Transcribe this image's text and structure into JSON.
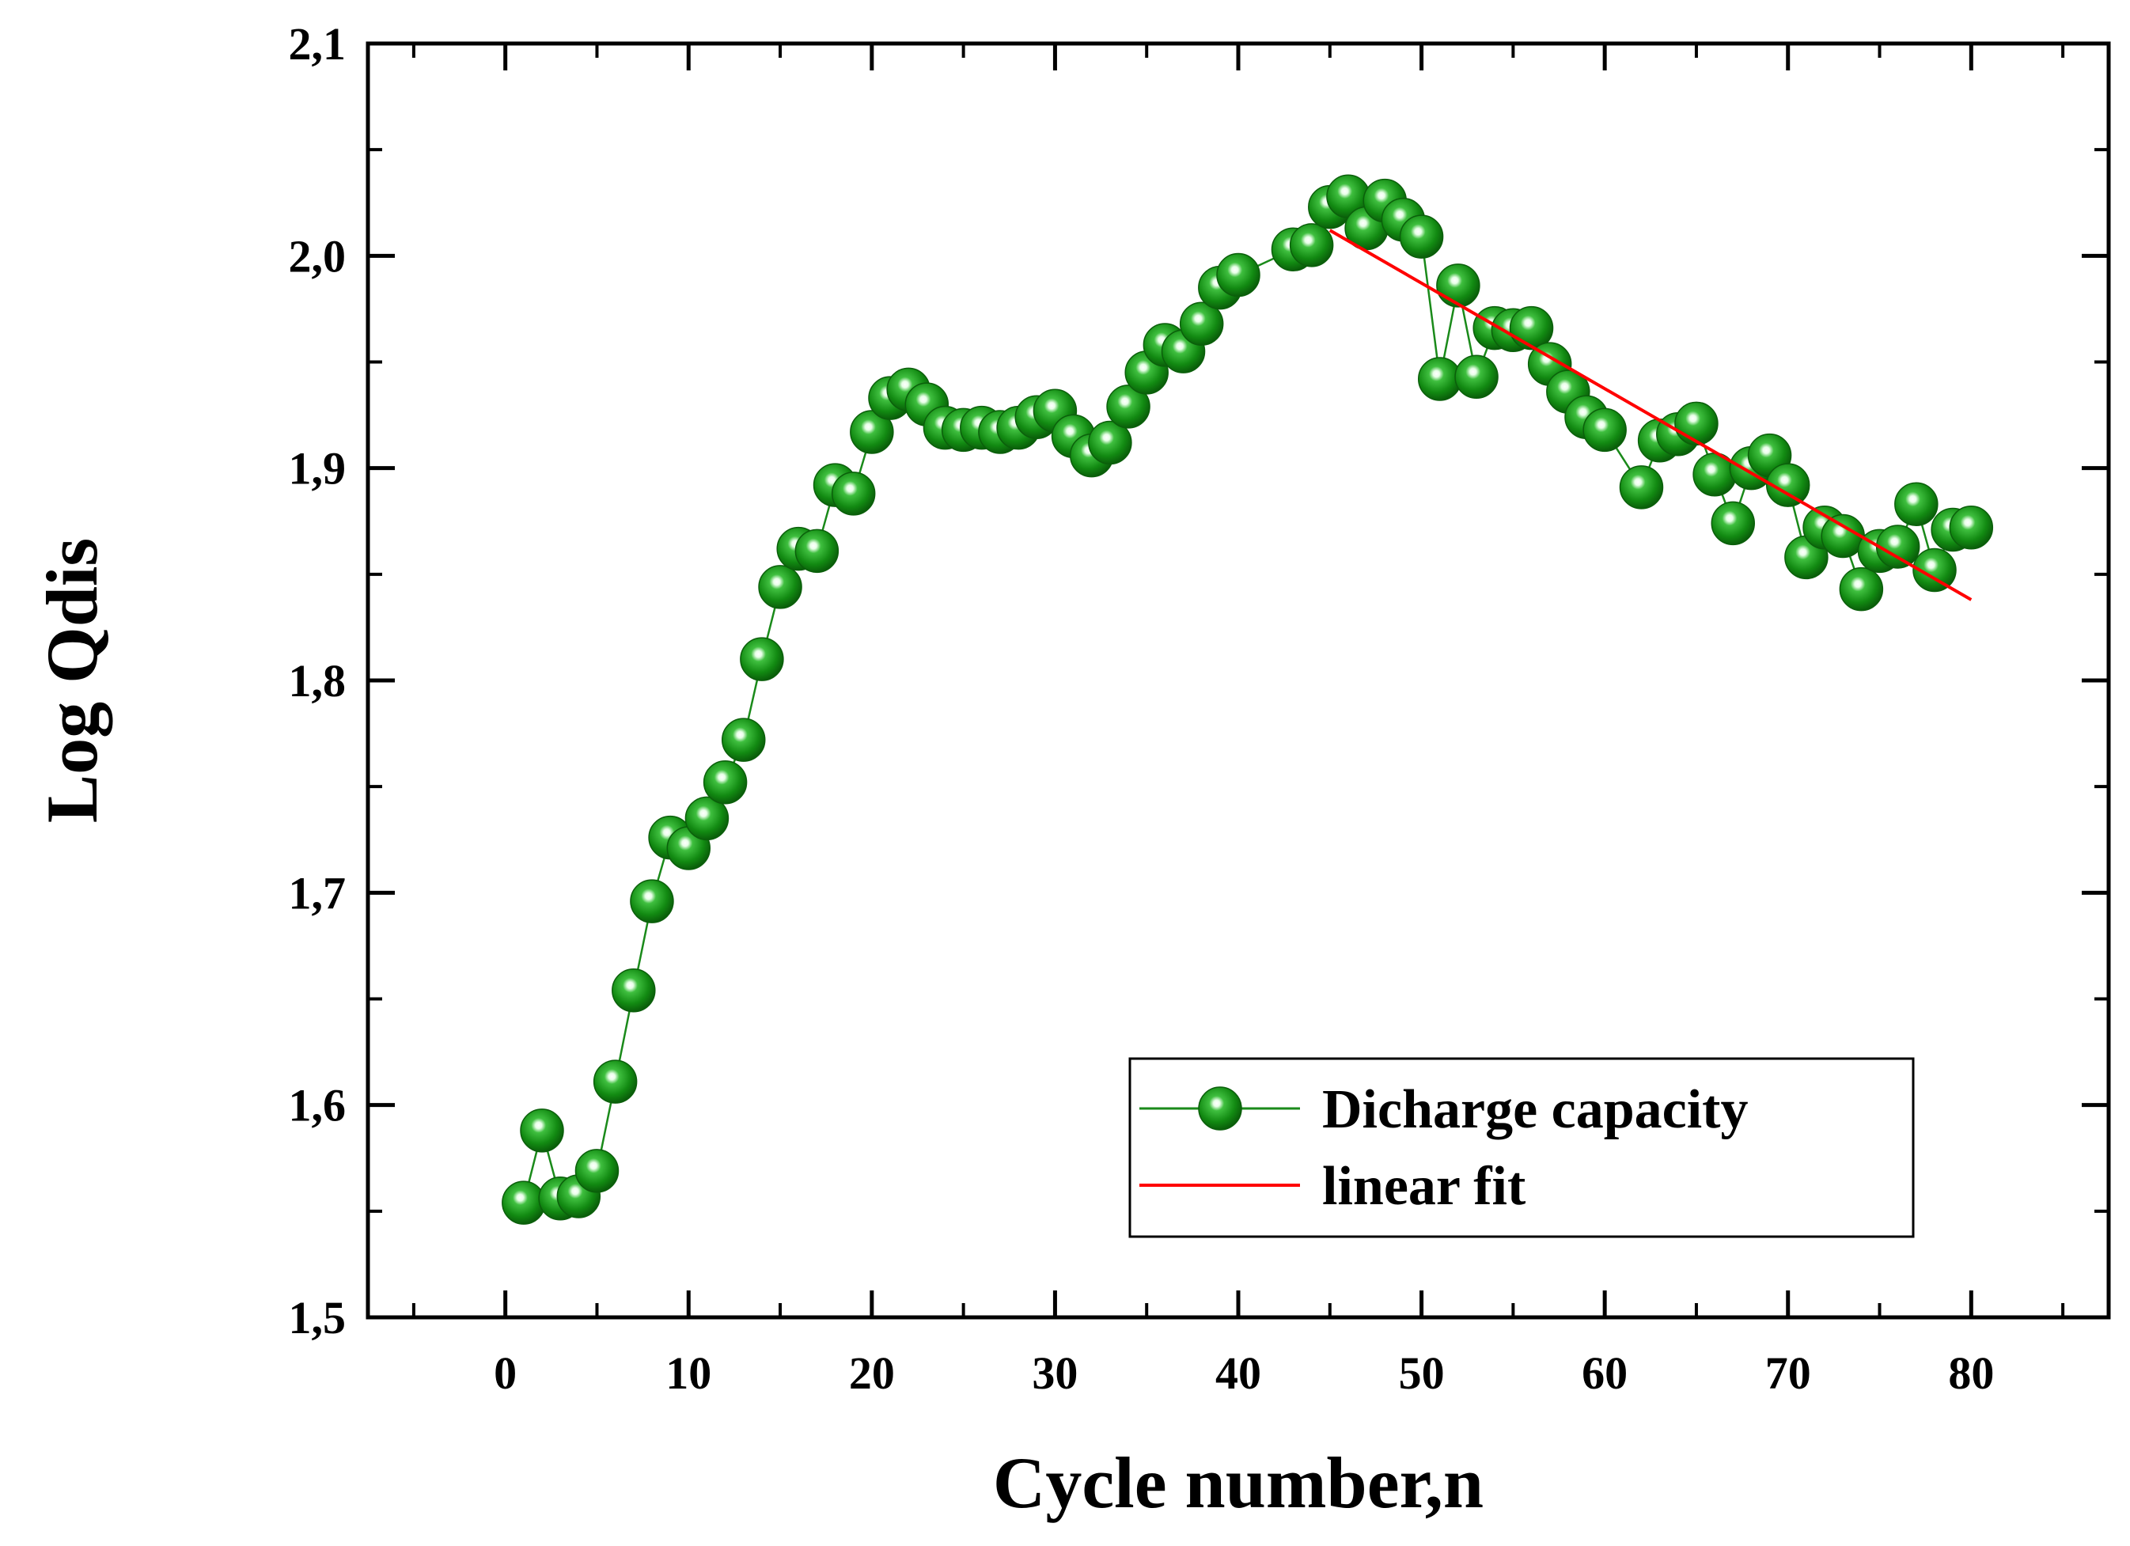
{
  "chart_data": {
    "type": "scatter",
    "title": "",
    "xlabel": "Cycle number,n",
    "ylabel": "Log Qdis",
    "xlim": [
      -7.5,
      87.5
    ],
    "ylim": [
      1.5,
      2.1
    ],
    "x_ticks": [
      0,
      10,
      20,
      30,
      40,
      50,
      60,
      70,
      80
    ],
    "x_tick_labels": [
      "0",
      "10",
      "20",
      "30",
      "40",
      "50",
      "60",
      "70",
      "80"
    ],
    "y_ticks": [
      1.5,
      1.6,
      1.7,
      1.8,
      1.9,
      2.0,
      2.1
    ],
    "y_tick_labels": [
      "1,5",
      "1,6",
      "1,7",
      "1,8",
      "1,9",
      "2,0",
      "2,1"
    ],
    "grid": false,
    "legend_position": "bottom-right",
    "series": [
      {
        "name": "Dicharge capacity",
        "kind": "line+markers",
        "marker": "sphere",
        "color": "#1a8a1a",
        "x": [
          1,
          2,
          3,
          4,
          5,
          6,
          7,
          8,
          9,
          10,
          11,
          12,
          13,
          14,
          15,
          16,
          17,
          18,
          19,
          20,
          21,
          22,
          23,
          24,
          25,
          26,
          27,
          28,
          29,
          30,
          31,
          32,
          33,
          34,
          35,
          36,
          37,
          38,
          39,
          40,
          43,
          44,
          45,
          46,
          47,
          48,
          49,
          50,
          51,
          52,
          53,
          54,
          55,
          56,
          57,
          58,
          59,
          60,
          62,
          63,
          64,
          65,
          66,
          67,
          68,
          69,
          70,
          71,
          72,
          73,
          74,
          75,
          76,
          77,
          78,
          79,
          80
        ],
        "y": [
          1.554,
          1.588,
          1.556,
          1.557,
          1.569,
          1.611,
          1.654,
          1.696,
          1.726,
          1.721,
          1.735,
          1.752,
          1.772,
          1.81,
          1.844,
          1.862,
          1.861,
          1.892,
          1.888,
          1.917,
          1.933,
          1.937,
          1.93,
          1.919,
          1.918,
          1.919,
          1.917,
          1.919,
          1.924,
          1.927,
          1.915,
          1.906,
          1.912,
          1.929,
          1.945,
          1.958,
          1.955,
          1.968,
          1.985,
          1.991,
          2.003,
          2.005,
          2.023,
          2.028,
          2.013,
          2.026,
          2.017,
          2.009,
          1.942,
          1.986,
          1.943,
          1.966,
          1.965,
          1.966,
          1.949,
          1.936,
          1.924,
          1.918,
          1.891,
          1.913,
          1.916,
          1.921,
          1.897,
          1.874,
          1.9,
          1.906,
          1.892,
          1.858,
          1.872,
          1.868,
          1.843,
          1.861,
          1.863,
          1.883,
          1.852,
          1.871,
          1.872
        ]
      },
      {
        "name": "linear fit",
        "kind": "line",
        "color": "#ff0000",
        "x": [
          45,
          80
        ],
        "y": [
          2.012,
          1.838
        ]
      }
    ]
  }
}
